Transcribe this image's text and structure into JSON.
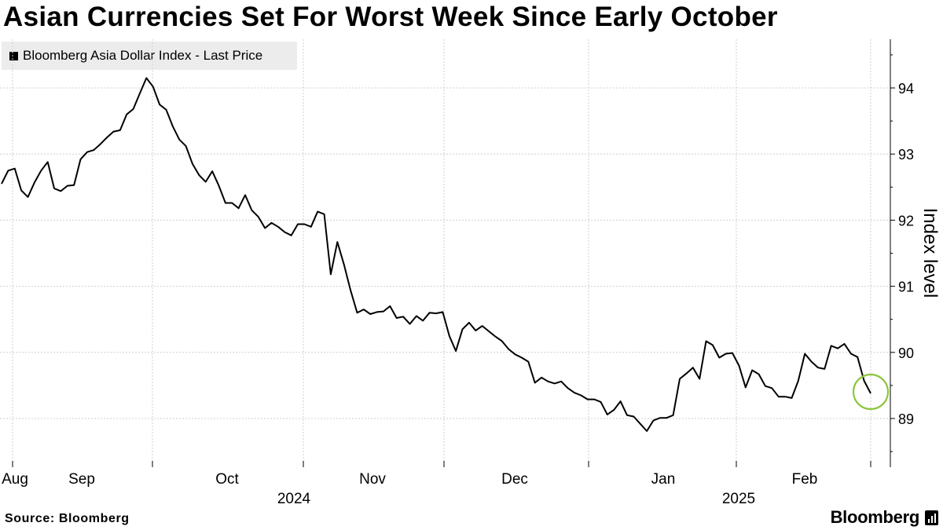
{
  "header": {
    "title": "Asian Currencies Set For Worst Week Since Early October"
  },
  "legend": {
    "label": "Bloomberg Asia Dollar Index - Last Price"
  },
  "footer": {
    "source": "Source: Bloomberg",
    "brand": "Bloomberg"
  },
  "colors": {
    "line": "#000000",
    "grid": "#cfcfcf",
    "highlight": "#8dc63f",
    "legend_bg": "#ececec"
  },
  "chart_data": {
    "type": "line",
    "title": "Asian Currencies Set For Worst Week Since Early October",
    "ylabel": "Index level",
    "ylim": [
      88.5,
      94.9
    ],
    "yticks": [
      89,
      90,
      91,
      92,
      93,
      94
    ],
    "month_labels": [
      "Aug",
      "Sep",
      "Oct",
      "Nov",
      "Dec",
      "Jan",
      "Feb"
    ],
    "year_labels": [
      "2024",
      "2025"
    ],
    "grid": true,
    "legend_position": "top-left",
    "series": [
      {
        "name": "Bloomberg Asia Dollar Index - Last Price",
        "values": [
          92.55,
          92.75,
          92.78,
          92.45,
          92.35,
          92.57,
          92.75,
          92.88,
          92.48,
          92.44,
          92.52,
          92.53,
          92.92,
          93.03,
          93.06,
          93.15,
          93.25,
          93.34,
          93.36,
          93.6,
          93.68,
          93.92,
          94.15,
          94.02,
          93.75,
          93.67,
          93.42,
          93.22,
          93.12,
          92.85,
          92.68,
          92.58,
          92.74,
          92.52,
          92.26,
          92.26,
          92.18,
          92.38,
          92.15,
          92.05,
          91.88,
          91.96,
          91.9,
          91.82,
          91.77,
          91.94,
          91.94,
          91.9,
          92.13,
          92.09,
          91.18,
          91.67,
          91.33,
          90.94,
          90.6,
          90.65,
          90.58,
          90.61,
          90.62,
          90.7,
          90.52,
          90.54,
          90.43,
          90.55,
          90.48,
          90.6,
          90.59,
          90.61,
          90.25,
          90.02,
          90.35,
          90.45,
          90.33,
          90.4,
          90.32,
          90.24,
          90.17,
          90.05,
          89.97,
          89.92,
          89.86,
          89.54,
          89.62,
          89.56,
          89.53,
          89.56,
          89.46,
          89.39,
          89.35,
          89.29,
          89.29,
          89.25,
          89.06,
          89.13,
          89.26,
          89.05,
          89.03,
          88.92,
          88.81,
          88.97,
          89.01,
          89.01,
          89.05,
          89.6,
          89.68,
          89.77,
          89.6,
          90.17,
          90.11,
          89.92,
          89.98,
          89.99,
          89.8,
          89.47,
          89.73,
          89.67,
          89.49,
          89.46,
          89.33,
          89.33,
          89.31,
          89.57,
          89.98,
          89.86,
          89.77,
          89.75,
          90.1,
          90.06,
          90.13,
          89.98,
          89.93,
          89.57,
          89.38
        ]
      }
    ],
    "annotations": [
      {
        "type": "circle",
        "target": "last-point"
      }
    ]
  }
}
